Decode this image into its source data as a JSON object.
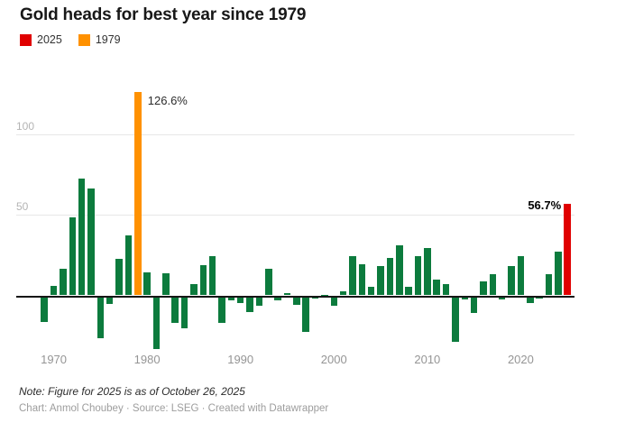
{
  "title": "Gold heads for best year since 1979",
  "legend": [
    {
      "label": "2025",
      "color": "#e00000"
    },
    {
      "label": "1979",
      "color": "#ff9100"
    }
  ],
  "note": "Note: Figure for 2025 is as of October 26, 2025",
  "credits": "Chart: Anmol Choubey · Source: LSEG · Created with Datawrapper",
  "chart_data": {
    "type": "bar",
    "title": "Gold heads for best year since 1979",
    "unit": "%",
    "ylim": [
      -35,
      132
    ],
    "yticks": [
      50,
      100
    ],
    "grid": "horizontal",
    "x_tick_labels": [
      "1970",
      "1980",
      "1990",
      "2000",
      "2010",
      "2020"
    ],
    "years": [
      1969,
      1970,
      1971,
      1972,
      1973,
      1974,
      1975,
      1976,
      1977,
      1978,
      1979,
      1980,
      1981,
      1982,
      1983,
      1984,
      1985,
      1986,
      1987,
      1988,
      1989,
      1990,
      1991,
      1992,
      1993,
      1994,
      1995,
      1996,
      1997,
      1998,
      1999,
      2000,
      2001,
      2002,
      2003,
      2004,
      2005,
      2006,
      2007,
      2008,
      2009,
      2010,
      2011,
      2012,
      2013,
      2014,
      2015,
      2016,
      2017,
      2018,
      2019,
      2020,
      2021,
      2022,
      2023,
      2024,
      2025
    ],
    "values": [
      -15.5,
      6,
      16.5,
      48.7,
      72.5,
      66.5,
      -25.5,
      -4,
      22.5,
      37,
      126.6,
      14.5,
      -32.5,
      14,
      -16,
      -19.5,
      7,
      18.5,
      24.5,
      -16,
      -2.2,
      -3.5,
      -9.5,
      -5.5,
      16.8,
      -2.2,
      1.5,
      -5,
      -21.5,
      -0.5,
      0.5,
      -5.5,
      2.5,
      24.5,
      19.5,
      5.5,
      18,
      23,
      31,
      5.5,
      24.5,
      29.5,
      10,
      7,
      -28,
      -1.5,
      -10,
      8.5,
      13,
      -1.5,
      18,
      24.5,
      -3.5,
      -0.3,
      13,
      27,
      56.7
    ],
    "colors": {
      "default": "#0c7b3d",
      "1979": "#ff9100",
      "2025": "#e00000"
    },
    "annotations": [
      {
        "year": 1979,
        "value": 126.6,
        "text": "126.6%",
        "bold": false,
        "side": "right"
      },
      {
        "year": 2025,
        "value": 56.7,
        "text": "56.7%",
        "bold": true,
        "side": "left"
      }
    ]
  }
}
